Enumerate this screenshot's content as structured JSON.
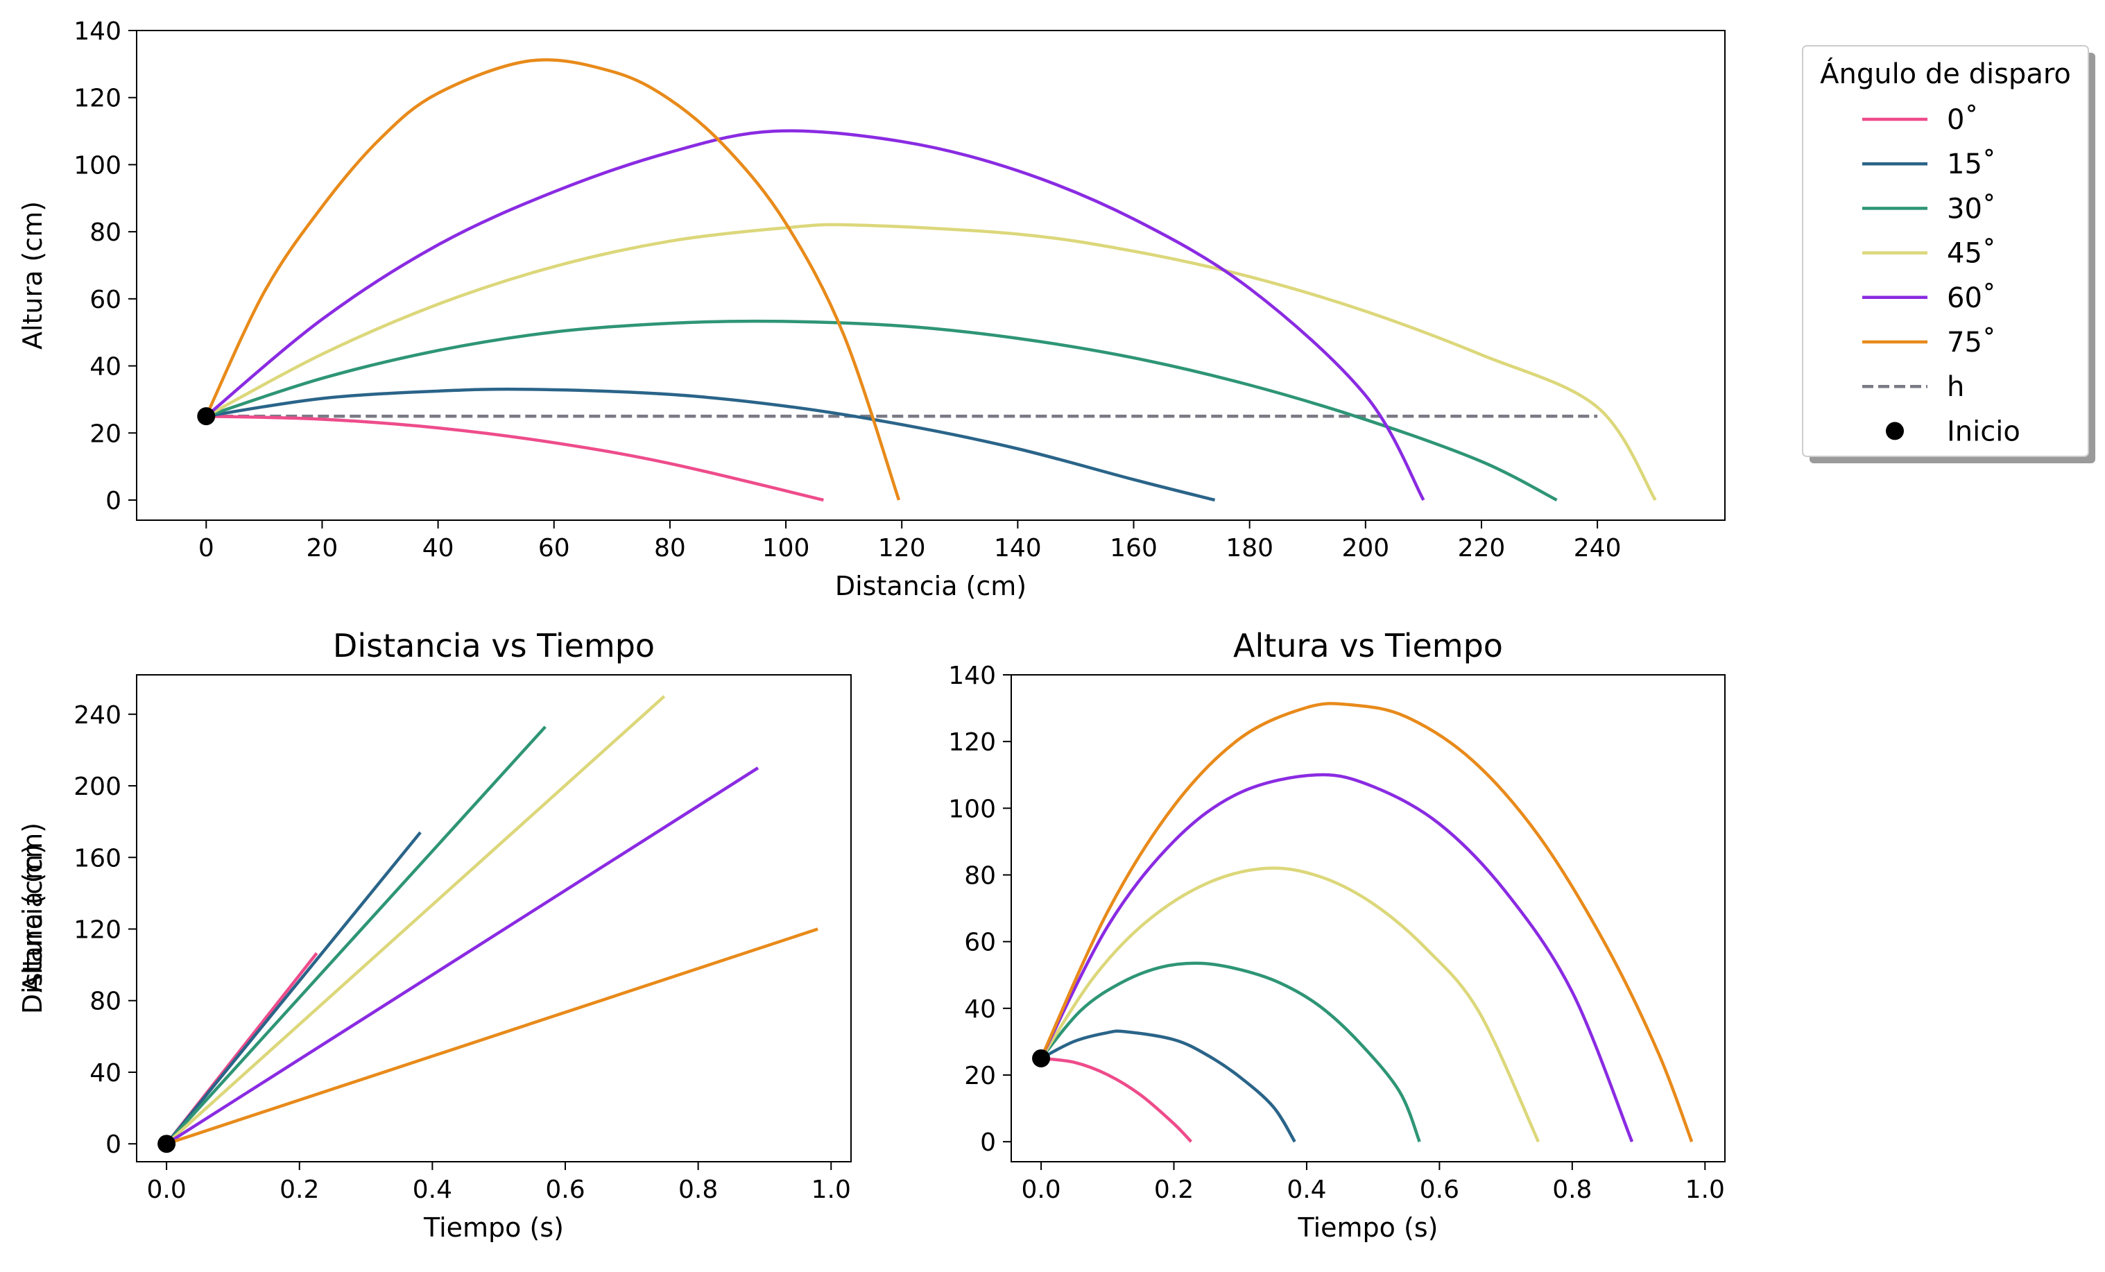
{
  "chart_data": [
    {
      "type": "line",
      "title": "",
      "xlabel": "Distancia (cm)",
      "ylabel": "Altura (cm)",
      "xlim": [
        -12,
        262
      ],
      "ylim": [
        -6,
        140
      ],
      "xticks": [
        0,
        20,
        40,
        60,
        80,
        100,
        120,
        140,
        160,
        180,
        200,
        220,
        240
      ],
      "yticks": [
        0,
        20,
        40,
        60,
        80,
        100,
        120,
        140
      ],
      "legend": {
        "title": "Ángulo de disparo",
        "placement": "outside-right",
        "entries": [
          "0˚",
          "15˚",
          "30˚",
          "45˚",
          "60˚",
          "75˚",
          "h",
          "Inicio"
        ]
      },
      "reference_line": {
        "name": "h",
        "y": 25,
        "x": [
          0,
          240
        ],
        "style": "dashed",
        "color": "#7a7a85"
      },
      "start_point": {
        "name": "Inicio",
        "x": 0,
        "y": 25,
        "color": "#000000"
      },
      "series": [
        {
          "name": "0˚",
          "color": "#ee4c8b",
          "x": [
            0,
            20,
            40,
            60,
            80,
            106.5
          ],
          "y": [
            25,
            24.1,
            21.5,
            17.1,
            10.9,
            0
          ]
        },
        {
          "name": "15˚",
          "color": "#2a6489",
          "x": [
            0,
            20,
            40,
            56,
            80,
            100,
            120,
            140,
            160,
            174
          ],
          "y": [
            25,
            30.3,
            32.5,
            33,
            31.5,
            28,
            22.5,
            15.3,
            6.1,
            0
          ]
        },
        {
          "name": "30˚",
          "color": "#2e9575",
          "x": [
            0,
            20,
            40,
            60,
            80,
            98,
            120,
            140,
            160,
            180,
            200,
            220,
            233
          ],
          "y": [
            25,
            36.3,
            44.6,
            50.1,
            52.7,
            53.3,
            51.9,
            48.2,
            42.4,
            34.3,
            24,
            11.5,
            0
          ]
        },
        {
          "name": "45˚",
          "color": "#dcd77a",
          "x": [
            0,
            20,
            40,
            60,
            80,
            100,
            112,
            140,
            160,
            180,
            200,
            220,
            240,
            250
          ],
          "y": [
            25,
            43.5,
            58.4,
            69.6,
            77.2,
            81.2,
            82,
            79.3,
            74.2,
            66.6,
            56.3,
            43.3,
            27.7,
            0
          ]
        },
        {
          "name": "60˚",
          "color": "#8a2be2",
          "x": [
            0,
            20,
            40,
            60,
            80,
            98,
            120,
            140,
            160,
            180,
            200,
            210
          ],
          "y": [
            25,
            53.9,
            76.1,
            91.9,
            103.7,
            110,
            106.9,
            98.2,
            83.8,
            63.1,
            31.2,
            0
          ]
        },
        {
          "name": "75˚",
          "color": "#e88a1a",
          "x": [
            0,
            10,
            20,
            30,
            40,
            56,
            70,
            80,
            90,
            100,
            110,
            119.5
          ],
          "y": [
            25,
            62,
            87.5,
            107.7,
            121.3,
            131,
            127.8,
            119.4,
            104.5,
            82.5,
            49.2,
            0
          ]
        }
      ]
    },
    {
      "type": "line",
      "title": "Distancia vs Tiempo",
      "xlabel": "Tiempo (s)",
      "ylabel": "Distancia (cm)",
      "xlim": [
        -0.045,
        1.03
      ],
      "ylim": [
        -10,
        262
      ],
      "xticks": [
        0.0,
        0.2,
        0.4,
        0.6,
        0.8,
        1.0
      ],
      "yticks": [
        0,
        40,
        80,
        120,
        160,
        200,
        240
      ],
      "start_point": {
        "x": 0,
        "y": 0,
        "color": "#000000"
      },
      "series": [
        {
          "name": "0˚",
          "color": "#ee4c8b",
          "x": [
            0,
            0.226
          ],
          "y": [
            0,
            106.5
          ]
        },
        {
          "name": "15˚",
          "color": "#2a6489",
          "x": [
            0,
            0.382
          ],
          "y": [
            0,
            174
          ]
        },
        {
          "name": "30˚",
          "color": "#2e9575",
          "x": [
            0,
            0.57
          ],
          "y": [
            0,
            233
          ]
        },
        {
          "name": "45˚",
          "color": "#dcd77a",
          "x": [
            0,
            0.749
          ],
          "y": [
            0,
            250
          ]
        },
        {
          "name": "60˚",
          "color": "#8a2be2",
          "x": [
            0,
            0.89
          ],
          "y": [
            0,
            210
          ]
        },
        {
          "name": "75˚",
          "color": "#e88a1a",
          "x": [
            0,
            0.98
          ],
          "y": [
            0,
            120
          ]
        }
      ]
    },
    {
      "type": "line",
      "title": "Altura vs Tiempo",
      "xlabel": "Tiempo (s)",
      "ylabel": "Altura (cm)",
      "xlim": [
        -0.045,
        1.03
      ],
      "ylim": [
        -6,
        140
      ],
      "xticks": [
        0.0,
        0.2,
        0.4,
        0.6,
        0.8,
        1.0
      ],
      "yticks": [
        0,
        20,
        40,
        60,
        80,
        100,
        120,
        140
      ],
      "start_point": {
        "x": 0,
        "y": 25,
        "color": "#000000"
      },
      "series": [
        {
          "name": "0˚",
          "color": "#ee4c8b",
          "x": [
            0,
            0.05,
            0.1,
            0.15,
            0.2,
            0.226
          ],
          "y": [
            25,
            23.8,
            20.1,
            14,
            5.4,
            0
          ]
        },
        {
          "name": "15˚",
          "color": "#2a6489",
          "x": [
            0,
            0.05,
            0.1,
            0.127,
            0.2,
            0.25,
            0.3,
            0.35,
            0.382
          ],
          "y": [
            25,
            30.1,
            32.7,
            33,
            30.6,
            26,
            19.3,
            10.4,
            0
          ]
        },
        {
          "name": "30˚",
          "color": "#2e9575",
          "x": [
            0,
            0.06,
            0.12,
            0.18,
            0.24,
            0.3,
            0.36,
            0.42,
            0.48,
            0.54,
            0.57
          ],
          "y": [
            25,
            39.4,
            47.6,
            52.3,
            53.5,
            51.6,
            47.6,
            40.6,
            29.6,
            15,
            0
          ]
        },
        {
          "name": "45˚",
          "color": "#dcd77a",
          "x": [
            0,
            0.08,
            0.16,
            0.25,
            0.34,
            0.42,
            0.5,
            0.58,
            0.66,
            0.749
          ],
          "y": [
            25,
            49.5,
            66.2,
            77.5,
            82,
            79.5,
            71.4,
            57.9,
            38.8,
            0
          ]
        },
        {
          "name": "60˚",
          "color": "#8a2be2",
          "x": [
            0,
            0.1,
            0.2,
            0.3,
            0.415,
            0.5,
            0.6,
            0.7,
            0.8,
            0.89
          ],
          "y": [
            25,
            64.5,
            90.1,
            104.7,
            110,
            106.5,
            95.3,
            74.9,
            44.9,
            0
          ]
        },
        {
          "name": "75˚",
          "color": "#e88a1a",
          "x": [
            0,
            0.1,
            0.2,
            0.3,
            0.4,
            0.467,
            0.55,
            0.65,
            0.75,
            0.85,
            0.93,
            0.98
          ],
          "y": [
            25,
            68.9,
            100.7,
            121,
            130.2,
            131,
            127.4,
            114.3,
            91.6,
            59.2,
            26.5,
            0
          ]
        }
      ]
    }
  ]
}
